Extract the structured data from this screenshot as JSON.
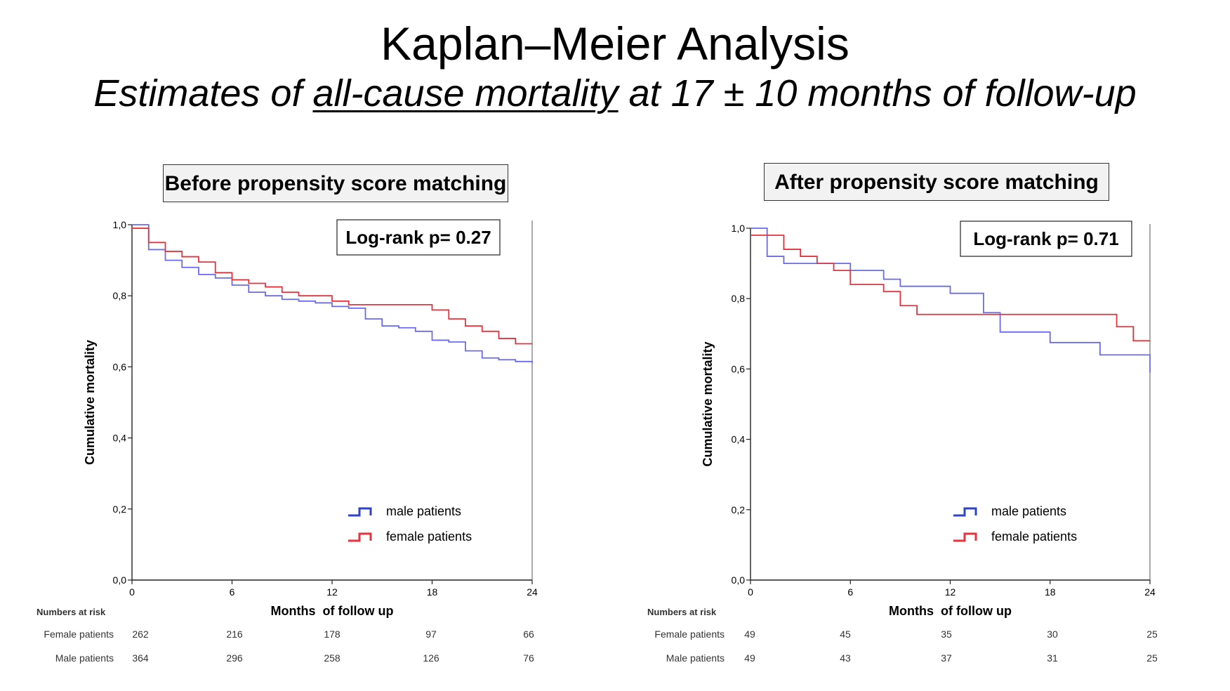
{
  "slide": {
    "title": "Kaplan–Meier Analysis",
    "subtitle_pre": "Estimates of ",
    "subtitle_underlined": "all-cause mortality",
    "subtitle_post": " at 17 ± 10 months of follow-up"
  },
  "colors": {
    "male": "#6b6bea",
    "female": "#e8333d",
    "legend_male": "#2f45c8",
    "legend_female": "#e8333d"
  },
  "chart_data": [
    {
      "type": "line",
      "step": true,
      "panel_label": "Before propensity score matching",
      "annotation": "Log-rank p= 0.27",
      "xlabel": "Months  of follow up",
      "ylabel": "Cumulative mortality",
      "xlim": [
        0,
        24
      ],
      "ylim": [
        0,
        1
      ],
      "xticks": [
        "0",
        "6",
        "12",
        "18",
        "24"
      ],
      "yticks": [
        "0,0",
        "0,2",
        "0,4",
        "0,6",
        "0,8",
        "1,0"
      ],
      "series": [
        {
          "name": "male patients",
          "key": "male",
          "x": [
            0,
            1,
            2,
            3,
            4,
            5,
            6,
            7,
            8,
            9,
            10,
            11,
            12,
            13,
            14,
            15,
            16,
            17,
            18,
            19,
            20,
            21,
            22,
            23,
            24
          ],
          "y": [
            1.0,
            0.93,
            0.9,
            0.88,
            0.86,
            0.85,
            0.83,
            0.81,
            0.8,
            0.79,
            0.785,
            0.78,
            0.77,
            0.765,
            0.735,
            0.715,
            0.71,
            0.7,
            0.675,
            0.67,
            0.645,
            0.625,
            0.62,
            0.615,
            0.61
          ]
        },
        {
          "name": "female patients",
          "key": "female",
          "x": [
            0,
            1,
            2,
            3,
            4,
            5,
            6,
            7,
            8,
            9,
            10,
            12,
            13,
            18,
            19,
            20,
            21,
            22,
            23,
            24
          ],
          "y": [
            0.99,
            0.95,
            0.925,
            0.91,
            0.895,
            0.865,
            0.845,
            0.835,
            0.825,
            0.81,
            0.8,
            0.785,
            0.775,
            0.76,
            0.735,
            0.715,
            0.7,
            0.68,
            0.665,
            0.665
          ]
        }
      ],
      "legend": {
        "position": "bottom-right"
      },
      "risk_table": {
        "header": "Numbers at risk",
        "rows": [
          {
            "label": "Female patients",
            "values": [
              "262",
              "216",
              "178",
              "97",
              "66"
            ]
          },
          {
            "label": "Male patients",
            "values": [
              "364",
              "296",
              "258",
              "126",
              "76"
            ]
          }
        ]
      }
    },
    {
      "type": "line",
      "step": true,
      "panel_label": "After propensity score matching",
      "annotation": "Log-rank p= 0.71",
      "xlabel": "Months  of follow up",
      "ylabel": "Cumulative mortality",
      "xlim": [
        0,
        24
      ],
      "ylim": [
        0,
        1
      ],
      "xticks": [
        "0",
        "6",
        "12",
        "18",
        "24"
      ],
      "yticks": [
        "0,0",
        "0,2",
        "0,4",
        "0,6",
        "0,8",
        "1,0"
      ],
      "series": [
        {
          "name": "male patients",
          "key": "male",
          "x": [
            0,
            1,
            2,
            5,
            6,
            8,
            9,
            12,
            14,
            15,
            18,
            21,
            24
          ],
          "y": [
            1.0,
            0.92,
            0.9,
            0.9,
            0.88,
            0.855,
            0.835,
            0.815,
            0.76,
            0.705,
            0.675,
            0.64,
            0.59
          ]
        },
        {
          "name": "female patients",
          "key": "female",
          "x": [
            0,
            2,
            3,
            4,
            5,
            6,
            8,
            9,
            10,
            22,
            23,
            24
          ],
          "y": [
            0.98,
            0.94,
            0.92,
            0.9,
            0.88,
            0.84,
            0.82,
            0.78,
            0.755,
            0.72,
            0.68,
            0.68
          ]
        }
      ],
      "legend": {
        "position": "bottom-right"
      },
      "risk_table": {
        "header": "Numbers at risk",
        "rows": [
          {
            "label": "Female patients",
            "values": [
              "49",
              "45",
              "35",
              "30",
              "25"
            ]
          },
          {
            "label": "Male patients",
            "values": [
              "49",
              "43",
              "37",
              "31",
              "25"
            ]
          }
        ]
      }
    }
  ]
}
